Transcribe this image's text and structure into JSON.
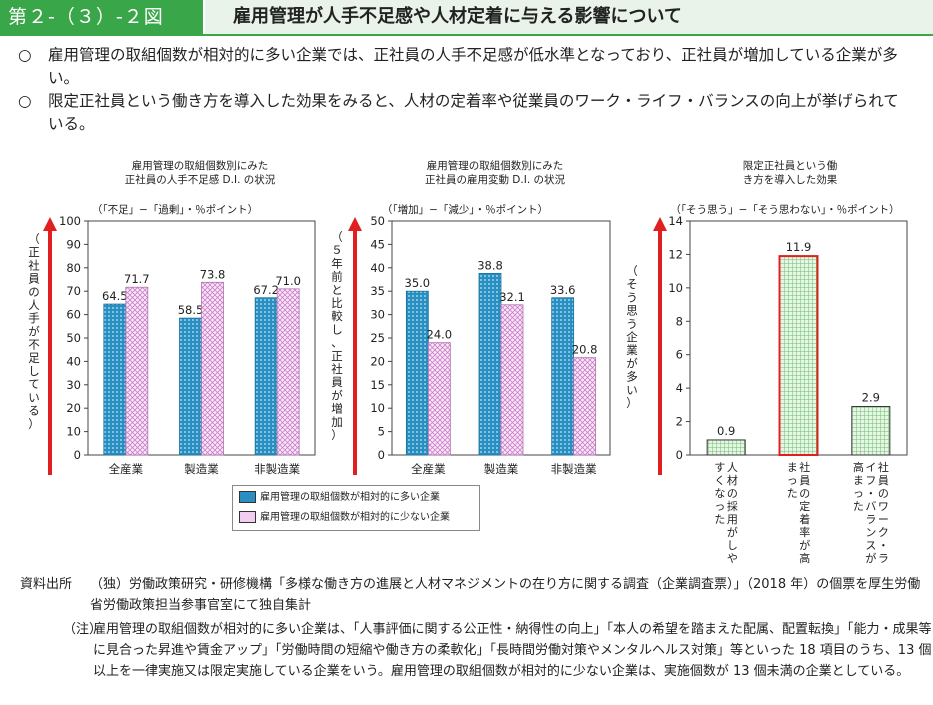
{
  "header": {
    "figure_label": "第２-（３）-２図",
    "title": "雇用管理が人手不足感や人材定着に与える影響について"
  },
  "summary": [
    {
      "bullet": "○",
      "text": "雇用管理の取組個数が相対的に多い企業では、正社員の人手不足感が低水準となっており、正社員が増加している企業が多い。"
    },
    {
      "bullet": "○",
      "text": "限定正社員という働き方を導入した効果をみると、人材の定着率や従業員のワーク・ライフ・バランスの向上が挙げられている。"
    }
  ],
  "colors": {
    "many": "#2a8fc0",
    "few": "#e9b6e6",
    "effect": "#9ed29c",
    "highlight": "#e02020",
    "arrow": "#e02020",
    "header": "#3aa64a"
  },
  "legend": {
    "many": "雇用管理の取組個数が相対的に多い企業",
    "few": "雇用管理の取組個数が相対的に少ない企業"
  },
  "chart_data": [
    {
      "type": "bar",
      "title": "雇用管理の取組個数別にみた正社員の人手不足感 D.I. の状況",
      "unit_note": "（「不足」−「過剰」・％ポイント）",
      "ylabel": "（正社員の人手が不足している）",
      "ylim": [
        0,
        100
      ],
      "yticks": [
        0,
        10,
        20,
        30,
        40,
        50,
        60,
        70,
        80,
        90,
        100
      ],
      "categories": [
        "全産業",
        "製造業",
        "非製造業"
      ],
      "series": [
        {
          "name": "雇用管理の取組個数が相対的に多い企業",
          "values": [
            64.5,
            58.5,
            67.2
          ]
        },
        {
          "name": "雇用管理の取組個数が相対的に少ない企業",
          "values": [
            71.7,
            73.8,
            71.0
          ]
        }
      ],
      "legend_position": "bottom"
    },
    {
      "type": "bar",
      "title": "雇用管理の取組個数別にみた正社員の雇用変動 D.I. の状況",
      "unit_note": "（「増加」−「減少」・％ポイント）",
      "ylabel": "（５年前と比較し、正社員が増加）",
      "ylim": [
        0,
        50
      ],
      "yticks": [
        0,
        5,
        10,
        15,
        20,
        25,
        30,
        35,
        40,
        45,
        50
      ],
      "categories": [
        "全産業",
        "製造業",
        "非製造業"
      ],
      "series": [
        {
          "name": "雇用管理の取組個数が相対的に多い企業",
          "values": [
            35.0,
            38.8,
            33.6
          ]
        },
        {
          "name": "雇用管理の取組個数が相対的に少ない企業",
          "values": [
            24.0,
            32.1,
            20.8
          ]
        }
      ]
    },
    {
      "type": "bar",
      "title": "限定正社員という働き方を導入した効果",
      "unit_note": "（「そう思う」−「そう思わない」・％ポイント）",
      "ylabel": "（そう思う企業が多い）",
      "ylim": [
        0,
        14
      ],
      "yticks": [
        0,
        2,
        4,
        6,
        8,
        10,
        12,
        14
      ],
      "categories": [
        "人材の採用がしやすくなった",
        "社員の定着率が高まった",
        "社員のワーク・ライフ・バランスが高まった"
      ],
      "values": [
        0.9,
        11.9,
        2.9
      ],
      "highlight_index": 1
    }
  ],
  "notes": {
    "source_label": "資料出所",
    "source": "（独）労働政策研究・研修機構「多様な働き方の進展と人材マネジメントの在り方に関する調査（企業調査票）」（2018 年）の個票を厚生労働省労働政策担当参事官室にて独自集計",
    "note_label": "（注）",
    "note": "雇用管理の取組個数が相対的に多い企業は、「人事評価に関する公正性・納得性の向上」「本人の希望を踏まえた配属、配置転換」「能力・成果等に見合った昇進や賃金アップ」「労働時間の短縮や働き方の柔軟化」「長時間労働対策やメンタルヘルス対策」等といった 18 項目のうち、13 個以上を一律実施又は限定実施している企業をいう。雇用管理の取組個数が相対的に少ない企業は、実施個数が 13 個未満の企業としている。"
  }
}
